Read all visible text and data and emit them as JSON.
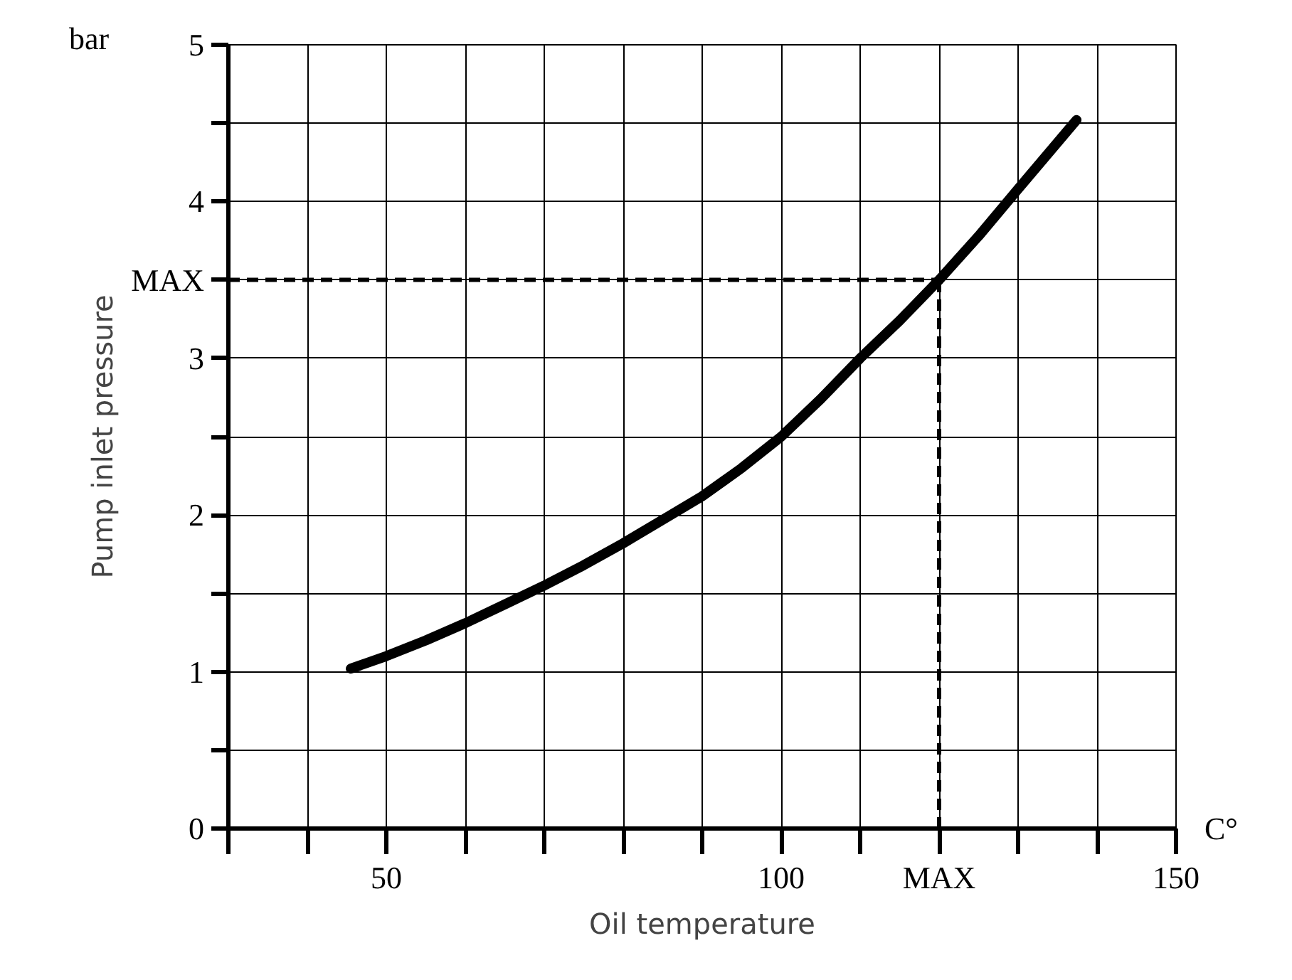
{
  "chart_data": {
    "type": "line",
    "xlabel": "Oil temperature",
    "ylabel": "Pump inlet pressure",
    "annotations": [
      "bar",
      "C°"
    ],
    "x": [
      45.5,
      50,
      55,
      60,
      65,
      70,
      75,
      80,
      86,
      90,
      95,
      100,
      105,
      110,
      115,
      120,
      125,
      130,
      137.4
    ],
    "series": [
      {
        "color": "#000000",
        "values": [
          1.02,
          1.1,
          1.2,
          1.31,
          1.43,
          1.55,
          1.68,
          1.82,
          2.0,
          2.12,
          2.3,
          2.5,
          2.74,
          3.0,
          3.24,
          3.5,
          3.78,
          4.08,
          4.52
        ]
      }
    ],
    "xlim": [
      30,
      150
    ],
    "ylim": [
      0,
      5
    ],
    "xticks": [
      {
        "value": 30,
        "label": null
      },
      {
        "value": 40,
        "label": null
      },
      50,
      {
        "value": 60,
        "label": null
      },
      {
        "value": 70,
        "label": null
      },
      {
        "value": 80,
        "label": null
      },
      {
        "value": 90,
        "label": null
      },
      100,
      {
        "value": 110,
        "label": null
      },
      {
        "value": 120,
        "label": "MAX"
      },
      {
        "value": 130,
        "label": null
      },
      {
        "value": 140,
        "label": null
      },
      150
    ],
    "yticks": [
      0,
      {
        "value": 0.5,
        "label": null
      },
      1,
      {
        "value": 1.5,
        "label": null
      },
      2,
      {
        "value": 2.5,
        "label": null
      },
      3,
      {
        "value": 3.5,
        "label": "MAX"
      },
      4,
      {
        "value": 4.5,
        "label": null
      },
      5
    ],
    "ref_lines": [
      {
        "axis": "y",
        "value": 3.5,
        "line_style": "dashed",
        "color": "#000000"
      },
      {
        "axis": "x",
        "value": 120,
        "line_style": "dashed",
        "color": "#000000"
      }
    ],
    "grid": true,
    "marker": "none",
    "line_style": "solid"
  }
}
